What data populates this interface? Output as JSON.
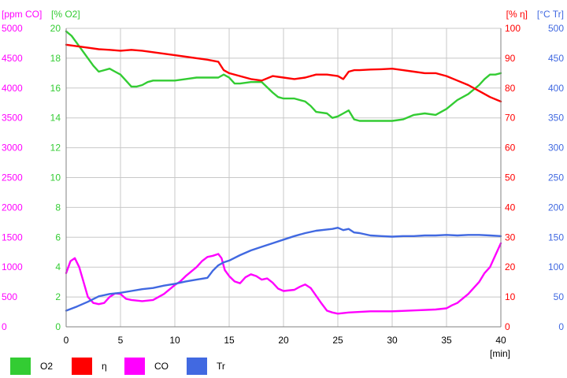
{
  "chart_data": {
    "type": "line",
    "x_axis": {
      "unit_label": "[min]",
      "range": [
        0,
        40
      ],
      "ticks": [
        "0",
        "5",
        "10",
        "15",
        "20",
        "25",
        "30",
        "35",
        "40"
      ],
      "grid": true
    },
    "y_axes": [
      {
        "id": "co",
        "label": "[ppm CO]",
        "color": "#ff00ff",
        "side": "left",
        "range": [
          0,
          5000
        ],
        "ticks": [
          "0",
          "500",
          "1000",
          "1500",
          "2000",
          "2500",
          "3000",
          "3500",
          "4000",
          "4500",
          "5000"
        ]
      },
      {
        "id": "o2",
        "label": "[% O2]",
        "color": "#33cc33",
        "side": "left",
        "range": [
          0,
          20
        ],
        "ticks": [
          "0",
          "2",
          "4",
          "6",
          "8",
          "10",
          "12",
          "14",
          "16",
          "18",
          "20"
        ]
      },
      {
        "id": "eta",
        "label": "[% η]",
        "color": "#ff0000",
        "side": "right",
        "range": [
          0,
          100
        ],
        "ticks": [
          "0",
          "10",
          "20",
          "30",
          "40",
          "50",
          "60",
          "70",
          "80",
          "90",
          "100"
        ]
      },
      {
        "id": "tr",
        "label": "[°C Tr]",
        "color": "#4169e1",
        "side": "right",
        "range": [
          0,
          500
        ],
        "ticks": [
          "0",
          "50",
          "100",
          "150",
          "200",
          "250",
          "300",
          "350",
          "400",
          "450",
          "500"
        ]
      }
    ],
    "grid": true,
    "legend_position": "bottom",
    "series": [
      {
        "name": "O2",
        "axis": "o2",
        "color": "#33cc33",
        "x": [
          0,
          0.5,
          1,
          1.5,
          2,
          2.5,
          3,
          3.5,
          4,
          4.5,
          5,
          5.5,
          6,
          6.5,
          7,
          7.5,
          8,
          9,
          10,
          11,
          12,
          13,
          13.5,
          14,
          14.5,
          15,
          15.5,
          16,
          17,
          18,
          19,
          19.5,
          20,
          21,
          22,
          22.5,
          23,
          24,
          24.5,
          25,
          25.5,
          26,
          26.5,
          27,
          28,
          29,
          30,
          31,
          32,
          33,
          34,
          35,
          36,
          37,
          38,
          38.5,
          39,
          39.5,
          40
        ],
        "values": [
          19.8,
          19.5,
          19.0,
          18.5,
          18.0,
          17.5,
          17.1,
          17.2,
          17.3,
          17.1,
          16.9,
          16.5,
          16.1,
          16.1,
          16.2,
          16.4,
          16.5,
          16.5,
          16.5,
          16.6,
          16.7,
          16.7,
          16.7,
          16.7,
          16.9,
          16.7,
          16.3,
          16.3,
          16.4,
          16.4,
          15.7,
          15.4,
          15.3,
          15.3,
          15.1,
          14.8,
          14.4,
          14.3,
          14.0,
          14.1,
          14.3,
          14.5,
          13.9,
          13.8,
          13.8,
          13.8,
          13.8,
          13.9,
          14.2,
          14.3,
          14.2,
          14.6,
          15.2,
          15.6,
          16.2,
          16.6,
          16.9,
          16.9,
          17.0
        ]
      },
      {
        "name": "η",
        "axis": "eta",
        "color": "#ff0000",
        "x": [
          0,
          1,
          2,
          3,
          4,
          5,
          6,
          7,
          8,
          9,
          10,
          11,
          12,
          13,
          14,
          14.5,
          15,
          16,
          17,
          18,
          19,
          20,
          21,
          22,
          23,
          24,
          25,
          25.5,
          26,
          26.5,
          27,
          28,
          29,
          30,
          31,
          32,
          33,
          34,
          35,
          36,
          37,
          38,
          39,
          40
        ],
        "values": [
          94.5,
          94.0,
          93.5,
          93.0,
          92.8,
          92.5,
          92.8,
          92.5,
          92.0,
          91.5,
          91.0,
          90.5,
          90.0,
          89.5,
          88.8,
          86.0,
          85.0,
          84.0,
          83.0,
          82.5,
          84.0,
          83.5,
          83.0,
          83.5,
          84.5,
          84.5,
          84.0,
          83.0,
          85.5,
          86.0,
          86.0,
          86.2,
          86.3,
          86.5,
          86.0,
          85.5,
          85.0,
          85.0,
          84.0,
          82.5,
          81.0,
          79.0,
          77.0,
          75.5
        ]
      },
      {
        "name": "CO",
        "axis": "co",
        "color": "#ff00ff",
        "x": [
          0,
          0.4,
          0.8,
          1.2,
          1.6,
          2,
          2.5,
          3,
          3.5,
          4,
          4.5,
          5,
          5.5,
          6,
          7,
          8,
          9,
          10,
          10.5,
          11,
          12,
          12.5,
          13,
          13.5,
          14,
          14.3,
          14.6,
          15,
          15.5,
          16,
          16.5,
          17,
          17.5,
          18,
          18.5,
          19,
          19.5,
          20,
          21,
          21.5,
          22,
          22.5,
          23,
          23.5,
          24,
          24.5,
          25,
          26,
          27,
          28,
          30,
          32,
          34,
          35,
          35.5,
          36,
          37,
          38,
          38.5,
          39,
          39.5,
          40
        ],
        "values": [
          900,
          1100,
          1150,
          1000,
          750,
          500,
          400,
          380,
          400,
          500,
          560,
          550,
          470,
          450,
          430,
          450,
          550,
          700,
          760,
          850,
          1000,
          1100,
          1170,
          1190,
          1220,
          1150,
          950,
          850,
          760,
          730,
          830,
          880,
          850,
          790,
          810,
          740,
          640,
          600,
          620,
          670,
          710,
          650,
          520,
          390,
          270,
          240,
          220,
          240,
          250,
          260,
          260,
          275,
          290,
          310,
          360,
          400,
          550,
          750,
          900,
          1000,
          1200,
          1400
        ]
      },
      {
        "name": "Tr",
        "axis": "tr",
        "color": "#4169e1",
        "x": [
          0,
          1,
          2,
          3,
          4,
          5,
          6,
          7,
          8,
          9,
          10,
          11,
          12,
          13,
          13.5,
          14,
          14.5,
          15,
          16,
          17,
          18,
          19,
          20,
          21,
          22,
          23,
          24,
          24.5,
          25,
          25.5,
          26,
          26.5,
          27,
          28,
          29,
          30,
          31,
          32,
          33,
          34,
          35,
          36,
          37,
          38,
          39,
          40
        ],
        "values": [
          27,
          34,
          42,
          51,
          55,
          57,
          60,
          63,
          65,
          69,
          72,
          76,
          79,
          82,
          94,
          103,
          108,
          111,
          120,
          128,
          134,
          140,
          146,
          152,
          157,
          161,
          163,
          164,
          166,
          162,
          164,
          158,
          157,
          153,
          152,
          151,
          152,
          152,
          153,
          153,
          154,
          153,
          154,
          154,
          153,
          152
        ]
      }
    ]
  }
}
